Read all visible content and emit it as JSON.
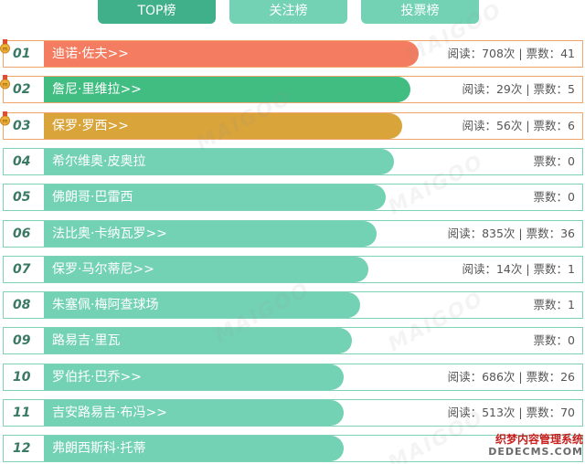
{
  "tabs": [
    {
      "label": "TOP榜",
      "active": true
    },
    {
      "label": "关注榜",
      "active": false
    },
    {
      "label": "投票榜",
      "active": false
    }
  ],
  "watermark": "MAIGOO",
  "rows": [
    {
      "rank": "01",
      "name": "迪诺·佐夫>>",
      "stats": "阅读：708次 | 票数：41",
      "bar_color": "#f47c60",
      "bar_fill": 0.71,
      "top": true
    },
    {
      "rank": "02",
      "name": "詹尼·里维拉>>",
      "stats": "阅读：29次 | 票数：5",
      "bar_color": "#41bd82",
      "bar_fill": 0.696,
      "top": true
    },
    {
      "rank": "03",
      "name": "保罗·罗西>>",
      "stats": "阅读：56次 | 票数：6",
      "bar_color": "#d9a43a",
      "bar_fill": 0.682,
      "top": true
    },
    {
      "rank": "04",
      "name": "希尔维奥·皮奥拉",
      "stats": "票数：0",
      "bar_color": "#73d2b4",
      "bar_fill": 0.667,
      "top": false
    },
    {
      "rank": "05",
      "name": "佛朗哥·巴雷西",
      "stats": "票数：0",
      "bar_color": "#73d2b4",
      "bar_fill": 0.653,
      "top": false
    },
    {
      "rank": "06",
      "name": "法比奥·卡纳瓦罗>>",
      "stats": "阅读：835次 | 票数：36",
      "bar_color": "#73d2b4",
      "bar_fill": 0.638,
      "top": false
    },
    {
      "rank": "07",
      "name": "保罗·马尔蒂尼>>",
      "stats": "阅读：14次 | 票数：1",
      "bar_color": "#73d2b4",
      "bar_fill": 0.624,
      "top": false
    },
    {
      "rank": "08",
      "name": "朱塞佩·梅阿查球场",
      "stats": "票数：1",
      "bar_color": "#73d2b4",
      "bar_fill": 0.61,
      "top": false
    },
    {
      "rank": "09",
      "name": "路易吉·里瓦",
      "stats": "票数：0",
      "bar_color": "#73d2b4",
      "bar_fill": 0.595,
      "top": false
    },
    {
      "rank": "10",
      "name": "罗伯托·巴乔>>",
      "stats": "阅读：686次 | 票数：26",
      "bar_color": "#73d2b4",
      "bar_fill": 0.581,
      "top": false
    },
    {
      "rank": "11",
      "name": "吉安路易吉·布冯>>",
      "stats": "阅读：513次 | 票数：70",
      "bar_color": "#73d2b4",
      "bar_fill": 0.581,
      "top": false
    },
    {
      "rank": "12",
      "name": "弗朗西斯科·托蒂",
      "stats": "",
      "bar_color": "#73d2b4",
      "bar_fill": 0.581,
      "top": false
    }
  ],
  "corner_logo": {
    "line1": "织梦内容管理系统",
    "line2": "DEDECMS.COM"
  }
}
